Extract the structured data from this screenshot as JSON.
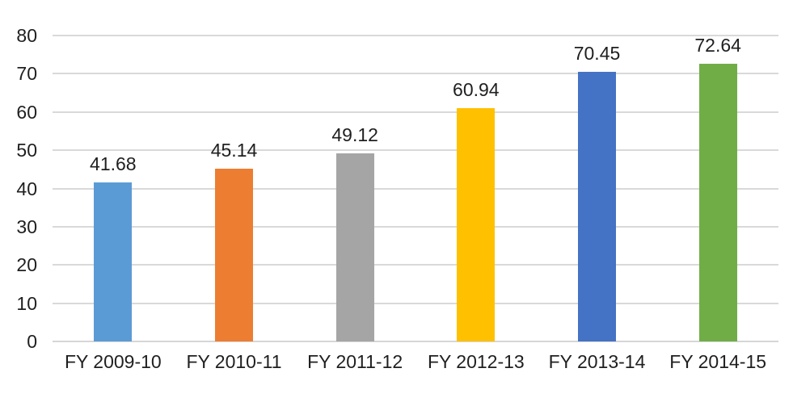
{
  "chart_data": {
    "type": "bar",
    "title": "",
    "xlabel": "",
    "ylabel": "",
    "categories": [
      "FY 2009-10",
      "FY 2010-11",
      "FY 2011-12",
      "FY 2012-13",
      "FY 2013-14",
      "FY 2014-15"
    ],
    "values": [
      41.68,
      45.14,
      49.12,
      60.94,
      70.45,
      72.64
    ],
    "data_labels": [
      "41.68",
      "45.14",
      "49.12",
      "60.94",
      "70.45",
      "72.64"
    ],
    "bar_colors": [
      "#5B9BD5",
      "#ED7D31",
      "#A5A5A5",
      "#FFC000",
      "#4472C4",
      "#70AD47"
    ],
    "ylim": [
      0,
      80
    ],
    "yticks": [
      0,
      10,
      20,
      30,
      40,
      50,
      60,
      70,
      80
    ],
    "ytick_labels": [
      "0",
      "10",
      "20",
      "30",
      "40",
      "50",
      "60",
      "70",
      "80"
    ],
    "grid": true,
    "gridline_color": "#D9D9D9",
    "axis_line_color": "#D6D6D6",
    "label_color": "#1f1f1f",
    "background": "#FFFFFF",
    "legend": "none",
    "data_labels_position": "above-bars"
  }
}
